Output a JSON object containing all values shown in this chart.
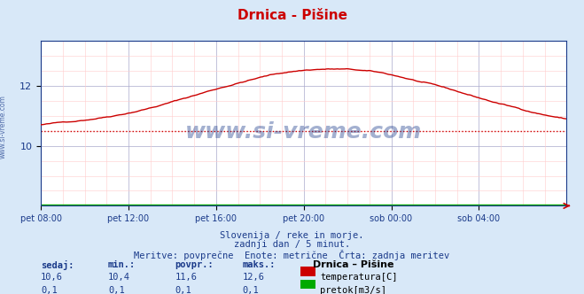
{
  "title": "Drnica - Pišine",
  "title_color": "#cc0000",
  "bg_color": "#d8e8f8",
  "plot_bg_color": "#ffffff",
  "grid_color_major": "#aaaacc",
  "x_labels": [
    "pet 08:00",
    "pet 12:00",
    "pet 16:00",
    "pet 20:00",
    "sob 00:00",
    "sob 04:00"
  ],
  "x_ticks_norm": [
    0.0,
    0.1667,
    0.3333,
    0.5,
    0.6667,
    0.8333
  ],
  "y_min": 8.0,
  "y_max": 13.5,
  "y_ticks": [
    10,
    12
  ],
  "temp_color": "#cc0000",
  "flow_color": "#00aa00",
  "avg_value": 10.5,
  "watermark": "www.si-vreme.com",
  "watermark_color": "#1a3a8a",
  "footer_line1": "Slovenija / reke in morje.",
  "footer_line2": "zadnji dan / 5 minut.",
  "footer_line3": "Meritve: povprečne  Enote: metrične  Črta: zadnja meritev",
  "footer_color": "#1a3a8a",
  "legend_title": "Drnica – Pišine",
  "label_color": "#1a3a8a",
  "stats_labels": [
    "sedaj:",
    "min.:",
    "povpr.:",
    "maks.:"
  ],
  "stats_temp": [
    10.6,
    10.4,
    11.6,
    12.6
  ],
  "stats_flow": [
    0.1,
    0.1,
    0.1,
    0.1
  ],
  "temp_label": "temperatura[C]",
  "flow_label": "pretok[m3/s]",
  "left_label": "www.si-vreme.com",
  "left_label_color": "#1a3a8a"
}
